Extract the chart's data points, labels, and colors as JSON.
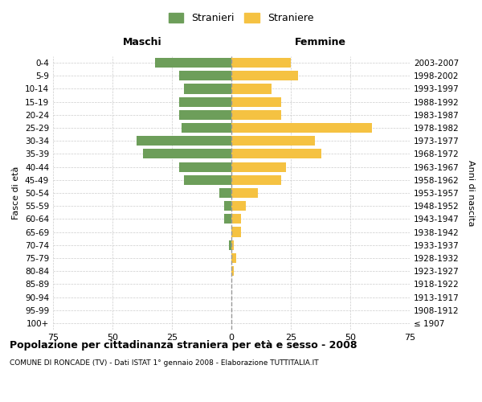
{
  "age_groups": [
    "100+",
    "95-99",
    "90-94",
    "85-89",
    "80-84",
    "75-79",
    "70-74",
    "65-69",
    "60-64",
    "55-59",
    "50-54",
    "45-49",
    "40-44",
    "35-39",
    "30-34",
    "25-29",
    "20-24",
    "15-19",
    "10-14",
    "5-9",
    "0-4"
  ],
  "birth_years": [
    "≤ 1907",
    "1908-1912",
    "1913-1917",
    "1918-1922",
    "1923-1927",
    "1928-1932",
    "1933-1937",
    "1938-1942",
    "1943-1947",
    "1948-1952",
    "1953-1957",
    "1958-1962",
    "1963-1967",
    "1968-1972",
    "1973-1977",
    "1978-1982",
    "1983-1987",
    "1988-1992",
    "1993-1997",
    "1998-2002",
    "2003-2007"
  ],
  "males": [
    0,
    0,
    0,
    0,
    0,
    0,
    1,
    0,
    3,
    3,
    5,
    20,
    22,
    37,
    40,
    21,
    22,
    22,
    20,
    22,
    32
  ],
  "females": [
    0,
    0,
    0,
    0,
    1,
    2,
    1,
    4,
    4,
    6,
    11,
    21,
    23,
    38,
    35,
    59,
    21,
    21,
    17,
    28,
    25
  ],
  "male_color": "#6d9e5a",
  "female_color": "#f5c242",
  "background_color": "#ffffff",
  "grid_color": "#cccccc",
  "title": "Popolazione per cittadinanza straniera per età e sesso - 2008",
  "subtitle": "COMUNE DI RONCADE (TV) - Dati ISTAT 1° gennaio 2008 - Elaborazione TUTTITALIA.IT",
  "xlabel_left": "Maschi",
  "xlabel_right": "Femmine",
  "ylabel_left": "Fasce di età",
  "ylabel_right": "Anni di nascita",
  "legend_male": "Stranieri",
  "legend_female": "Straniere",
  "xlim": 75
}
